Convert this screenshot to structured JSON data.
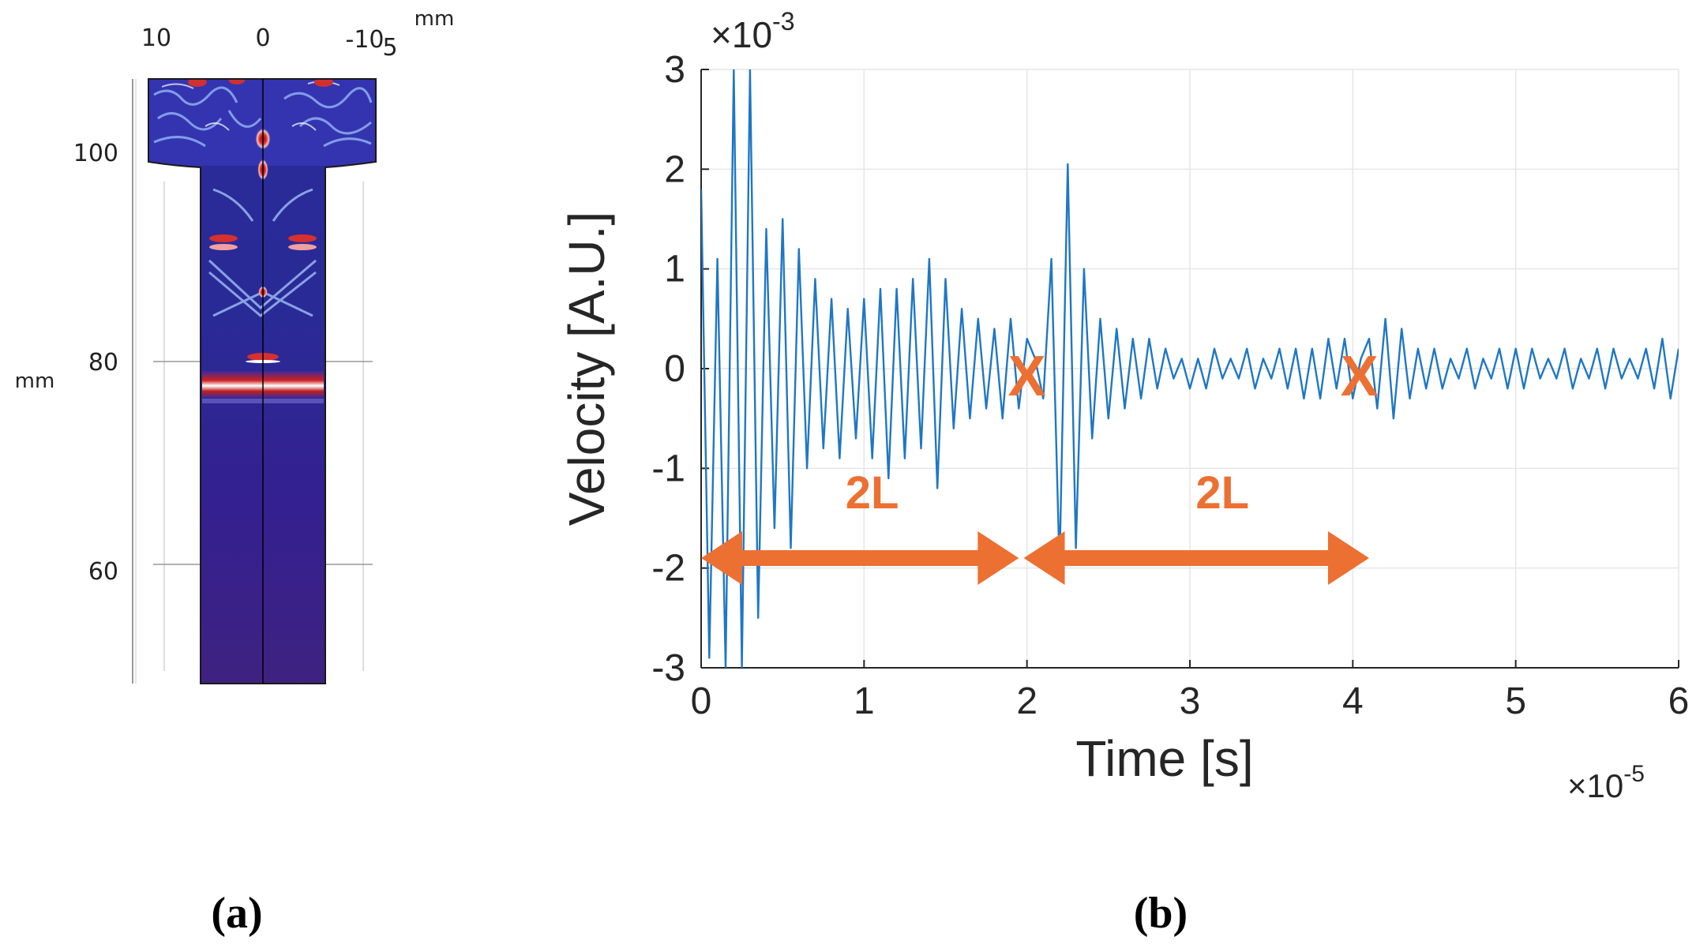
{
  "panel_a": {
    "caption": "(a)",
    "unit_top": "mm",
    "unit_left": "mm",
    "x_ticks": [
      "10",
      "0",
      "-10",
      "5"
    ],
    "y_ticks": [
      "100",
      "80",
      "60"
    ],
    "colormap": {
      "low": "#3a1f8a",
      "mid": "#ffffff",
      "high": "#b81414"
    }
  },
  "panel_b": {
    "caption": "(b)",
    "annotations": {
      "arrow1_label": "2L",
      "arrow2_label": "2L",
      "marker1": "X",
      "marker2": "X"
    },
    "colors": {
      "line": "#1f77c4",
      "annotation": "#ec7032",
      "grid": "#e6e6e6"
    }
  },
  "chart_data": {
    "type": "line",
    "title": "",
    "xlabel": "Time  [s]",
    "ylabel": "Velocity  [A.U.]",
    "x_exponent_label": "×10",
    "x_exponent_power": "-5",
    "y_exponent_label": "×10",
    "y_exponent_power": "-3",
    "xlim": [
      0,
      6
    ],
    "ylim": [
      -3,
      3
    ],
    "x_ticks": [
      0,
      1,
      2,
      3,
      4,
      5,
      6
    ],
    "y_ticks": [
      -3,
      -2,
      -1,
      0,
      1,
      2,
      3
    ],
    "x_tick_labels": [
      "0",
      "1",
      "2",
      "3",
      "4",
      "5",
      "6"
    ],
    "y_tick_labels": [
      "-3",
      "-2",
      "-1",
      "0",
      "1",
      "2",
      "3"
    ],
    "grid": true,
    "series": [
      {
        "name": "Velocity",
        "x": [
          0,
          0.05,
          0.1,
          0.15,
          0.2,
          0.25,
          0.3,
          0.35,
          0.4,
          0.45,
          0.5,
          0.55,
          0.6,
          0.65,
          0.7,
          0.75,
          0.8,
          0.85,
          0.9,
          0.95,
          1.0,
          1.05,
          1.1,
          1.15,
          1.2,
          1.25,
          1.3,
          1.35,
          1.4,
          1.45,
          1.5,
          1.55,
          1.6,
          1.65,
          1.7,
          1.75,
          1.8,
          1.85,
          1.9,
          1.95,
          2.0,
          2.05,
          2.1,
          2.15,
          2.2,
          2.25,
          2.3,
          2.35,
          2.4,
          2.45,
          2.5,
          2.55,
          2.6,
          2.65,
          2.7,
          2.75,
          2.8,
          2.85,
          2.9,
          2.95,
          3.0,
          3.05,
          3.1,
          3.15,
          3.2,
          3.25,
          3.3,
          3.35,
          3.4,
          3.45,
          3.5,
          3.55,
          3.6,
          3.65,
          3.7,
          3.75,
          3.8,
          3.85,
          3.9,
          3.95,
          4.0,
          4.05,
          4.1,
          4.15,
          4.2,
          4.25,
          4.3,
          4.35,
          4.4,
          4.45,
          4.5,
          4.55,
          4.6,
          4.65,
          4.7,
          4.75,
          4.8,
          4.85,
          4.9,
          4.95,
          5.0,
          5.05,
          5.1,
          5.15,
          5.2,
          5.25,
          5.3,
          5.35,
          5.4,
          5.45,
          5.5,
          5.55,
          5.6,
          5.65,
          5.7,
          5.75,
          5.8,
          5.85,
          5.9,
          5.95,
          6.0
        ],
        "values": [
          1.8,
          -2.9,
          1.1,
          -3.0,
          3.0,
          -3.0,
          3.0,
          -2.5,
          1.4,
          -1.6,
          1.5,
          -1.8,
          1.2,
          -1.0,
          0.9,
          -0.8,
          0.7,
          -0.9,
          0.6,
          -0.7,
          0.7,
          -0.9,
          0.8,
          -1.1,
          0.8,
          -0.9,
          0.9,
          -0.8,
          1.1,
          -1.2,
          0.9,
          -0.6,
          0.6,
          -0.5,
          0.5,
          -0.4,
          0.4,
          -0.5,
          0.5,
          -0.4,
          0.3,
          0.1,
          -0.3,
          1.1,
          -2.0,
          2.05,
          -1.8,
          1.0,
          -0.7,
          0.5,
          -0.5,
          0.4,
          -0.4,
          0.3,
          -0.3,
          0.3,
          -0.2,
          0.2,
          -0.1,
          0.1,
          -0.2,
          0.1,
          -0.2,
          0.2,
          -0.1,
          0.1,
          -0.1,
          0.2,
          -0.2,
          0.1,
          -0.1,
          0.2,
          -0.2,
          0.2,
          -0.3,
          0.2,
          -0.3,
          0.3,
          -0.2,
          0.3,
          -0.3,
          0.1,
          0.3,
          -0.4,
          0.5,
          -0.5,
          0.4,
          -0.3,
          0.2,
          -0.2,
          0.2,
          -0.2,
          0.1,
          -0.1,
          0.2,
          -0.2,
          0.1,
          -0.1,
          0.2,
          -0.2,
          0.2,
          -0.2,
          0.2,
          -0.1,
          0.1,
          -0.1,
          0.2,
          -0.2,
          0.1,
          -0.1,
          0.2,
          -0.2,
          0.2,
          -0.1,
          0.1,
          -0.1,
          0.2,
          -0.2,
          0.3,
          -0.3,
          0.2
        ]
      }
    ]
  }
}
